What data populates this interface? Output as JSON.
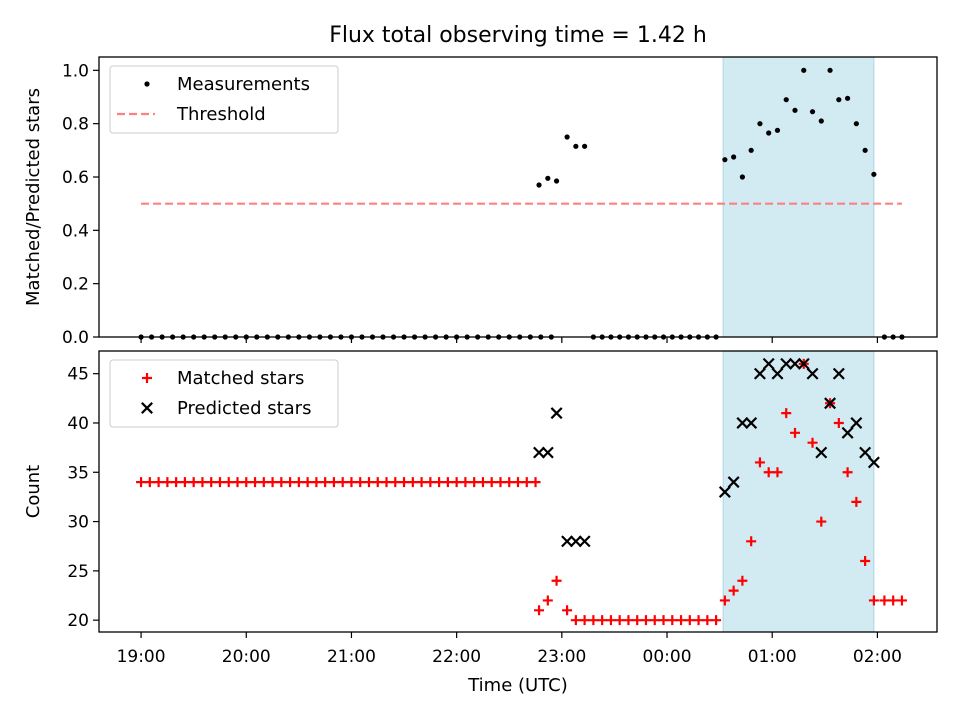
{
  "figure": {
    "title": "Flux total observing time = 1.42 h",
    "xlabel": "Time (UTC)"
  },
  "chart_data": [
    {
      "type": "scatter",
      "ylabel": "Matched/Predicted stars",
      "xlim": [
        "18:36",
        "02:34"
      ],
      "ylim": [
        0,
        1.05
      ],
      "yticks": [
        0.0,
        0.2,
        0.4,
        0.6,
        0.8,
        1.0
      ],
      "ytick_labels": [
        "0.0",
        "0.2",
        "0.4",
        "0.6",
        "0.8",
        "1.0"
      ],
      "xticks": [
        "19:00",
        "20:00",
        "21:00",
        "22:00",
        "23:00",
        "00:00",
        "01:00",
        "02:00"
      ],
      "shaded_span": {
        "x": [
          "00:32",
          "01:58"
        ],
        "color": "#add8e6"
      },
      "legend": {
        "location": "upper left",
        "entries": [
          "Measurements",
          "Threshold"
        ]
      },
      "series": [
        {
          "name": "Measurements",
          "marker": "dot",
          "color": "#000000",
          "x": [
            "19:00",
            "19:06",
            "19:12",
            "19:18",
            "19:24",
            "19:30",
            "19:36",
            "19:42",
            "19:48",
            "19:54",
            "20:00",
            "20:06",
            "20:12",
            "20:18",
            "20:24",
            "20:30",
            "20:36",
            "20:42",
            "20:48",
            "20:54",
            "21:00",
            "21:06",
            "21:12",
            "21:18",
            "21:24",
            "21:30",
            "21:36",
            "21:42",
            "21:48",
            "21:54",
            "22:00",
            "22:06",
            "22:12",
            "22:18",
            "22:24",
            "22:30",
            "22:36",
            "22:42",
            "22:48",
            "22:54",
            "22:47",
            "22:52",
            "22:57",
            "23:03",
            "23:08",
            "23:13",
            "23:18",
            "23:23",
            "23:28",
            "23:33",
            "23:38",
            "23:43",
            "23:48",
            "23:53",
            "23:58",
            "00:03",
            "00:08",
            "00:13",
            "00:18",
            "00:23",
            "00:28",
            "00:33",
            "00:38",
            "00:43",
            "00:48",
            "00:53",
            "00:58",
            "01:03",
            "01:08",
            "01:13",
            "01:18",
            "01:23",
            "01:28",
            "01:33",
            "01:38",
            "01:43",
            "01:48",
            "01:53",
            "01:58",
            "02:04",
            "02:09",
            "02:14"
          ],
          "y": [
            0,
            0,
            0,
            0,
            0,
            0,
            0,
            0,
            0,
            0,
            0,
            0,
            0,
            0,
            0,
            0,
            0,
            0,
            0,
            0,
            0,
            0,
            0,
            0,
            0,
            0,
            0,
            0,
            0,
            0,
            0,
            0,
            0,
            0,
            0,
            0,
            0,
            0,
            0,
            0,
            0.57,
            0.595,
            0.585,
            0.75,
            0.715,
            0.715,
            0,
            0,
            0,
            0,
            0,
            0,
            0,
            0,
            0,
            0,
            0,
            0,
            0,
            0,
            0,
            0.665,
            0.675,
            0.6,
            0.7,
            0.8,
            0.765,
            0.775,
            0.89,
            0.85,
            1.0,
            0.845,
            0.81,
            1.0,
            0.89,
            0.895,
            0.8,
            0.7,
            0.61,
            0,
            0,
            0
          ]
        },
        {
          "name": "Threshold",
          "style": "dashed",
          "color": "#ff8080",
          "x": [
            "19:00",
            "02:14"
          ],
          "y": [
            0.5,
            0.5
          ]
        }
      ]
    },
    {
      "type": "scatter",
      "ylabel": "Count",
      "xlim": [
        "18:36",
        "02:34"
      ],
      "ylim": [
        18.8,
        47.3
      ],
      "yticks": [
        20,
        25,
        30,
        35,
        40,
        45
      ],
      "ytick_labels": [
        "20",
        "25",
        "30",
        "35",
        "40",
        "45"
      ],
      "xticks": [
        "19:00",
        "20:00",
        "21:00",
        "22:00",
        "23:00",
        "00:00",
        "01:00",
        "02:00"
      ],
      "xtick_labels": [
        "19:00",
        "20:00",
        "21:00",
        "22:00",
        "23:00",
        "00:00",
        "01:00",
        "02:00"
      ],
      "shaded_span": {
        "x": [
          "00:32",
          "01:58"
        ],
        "color": "#add8e6"
      },
      "legend": {
        "location": "upper left",
        "entries": [
          "Matched stars",
          "Predicted stars"
        ]
      },
      "series": [
        {
          "name": "Matched stars",
          "marker": "plus",
          "color": "#ff0000",
          "x": [
            "19:00",
            "19:05",
            "19:10",
            "19:15",
            "19:20",
            "19:25",
            "19:30",
            "19:35",
            "19:40",
            "19:45",
            "19:50",
            "19:55",
            "20:00",
            "20:05",
            "20:10",
            "20:15",
            "20:20",
            "20:25",
            "20:30",
            "20:35",
            "20:40",
            "20:45",
            "20:50",
            "20:55",
            "21:00",
            "21:05",
            "21:10",
            "21:15",
            "21:20",
            "21:25",
            "21:30",
            "21:35",
            "21:40",
            "21:45",
            "21:50",
            "21:55",
            "22:00",
            "22:05",
            "22:10",
            "22:15",
            "22:20",
            "22:25",
            "22:30",
            "22:35",
            "22:40",
            "22:45",
            "22:47",
            "22:52",
            "22:57",
            "23:03",
            "23:08",
            "23:13",
            "23:18",
            "23:23",
            "23:28",
            "23:33",
            "23:38",
            "23:43",
            "23:48",
            "23:53",
            "23:58",
            "00:03",
            "00:08",
            "00:13",
            "00:18",
            "00:23",
            "00:28",
            "00:33",
            "00:38",
            "00:43",
            "00:48",
            "00:53",
            "00:58",
            "01:03",
            "01:08",
            "01:13",
            "01:18",
            "01:23",
            "01:28",
            "01:33",
            "01:38",
            "01:43",
            "01:48",
            "01:53",
            "01:58",
            "02:04",
            "02:09",
            "02:14"
          ],
          "y": [
            34,
            34,
            34,
            34,
            34,
            34,
            34,
            34,
            34,
            34,
            34,
            34,
            34,
            34,
            34,
            34,
            34,
            34,
            34,
            34,
            34,
            34,
            34,
            34,
            34,
            34,
            34,
            34,
            34,
            34,
            34,
            34,
            34,
            34,
            34,
            34,
            34,
            34,
            34,
            34,
            34,
            34,
            34,
            34,
            34,
            34,
            21,
            22,
            24,
            21,
            20,
            20,
            20,
            20,
            20,
            20,
            20,
            20,
            20,
            20,
            20,
            20,
            20,
            20,
            20,
            20,
            20,
            22,
            23,
            24,
            28,
            36,
            35,
            35,
            41,
            39,
            46,
            38,
            30,
            42,
            40,
            35,
            32,
            26,
            22,
            22,
            22,
            22
          ]
        },
        {
          "name": "Predicted stars",
          "marker": "x",
          "color": "#000000",
          "x": [
            "22:47",
            "22:52",
            "22:57",
            "23:03",
            "23:08",
            "23:13",
            "00:33",
            "00:38",
            "00:43",
            "00:48",
            "00:53",
            "00:58",
            "01:03",
            "01:08",
            "01:13",
            "01:18",
            "01:23",
            "01:28",
            "01:33",
            "01:38",
            "01:43",
            "01:48",
            "01:53",
            "01:58"
          ],
          "y": [
            37,
            37,
            41,
            28,
            28,
            28,
            33,
            34,
            40,
            40,
            45,
            46,
            45,
            46,
            46,
            46,
            45,
            37,
            42,
            45,
            39,
            40,
            37,
            36
          ]
        }
      ]
    }
  ]
}
